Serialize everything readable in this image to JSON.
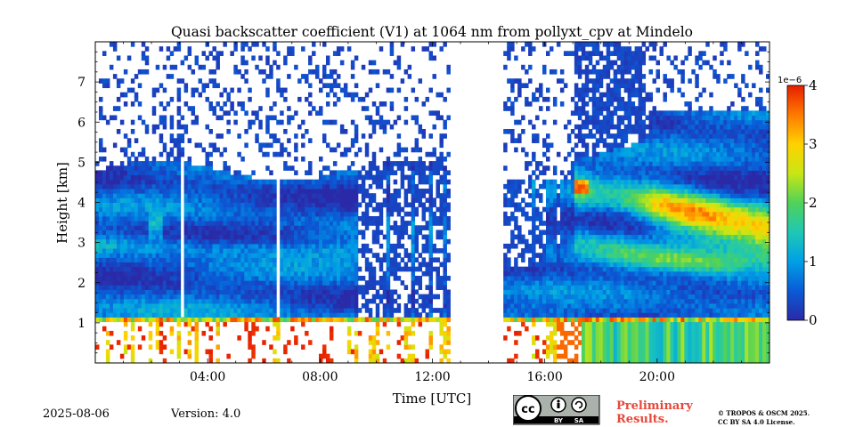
{
  "chart_data": {
    "type": "heatmap",
    "title": "Quasi backscatter coefficient (V1) at 1064 nm from pollyxt_cpv at Mindelo",
    "xlabel": "Time [UTC]",
    "ylabel": "Height [km]",
    "x_range_hours": [
      0,
      24
    ],
    "x_ticks": [
      {
        "value": 4,
        "label": "04:00"
      },
      {
        "value": 8,
        "label": "08:00"
      },
      {
        "value": 12,
        "label": "12:00"
      },
      {
        "value": 16,
        "label": "16:00"
      },
      {
        "value": 20,
        "label": "20:00"
      }
    ],
    "y_range_km": [
      0,
      8
    ],
    "y_ticks": [
      {
        "value": 1,
        "label": "1"
      },
      {
        "value": 2,
        "label": "2"
      },
      {
        "value": 3,
        "label": "3"
      },
      {
        "value": 4,
        "label": "4"
      },
      {
        "value": 5,
        "label": "5"
      },
      {
        "value": 6,
        "label": "6"
      },
      {
        "value": 7,
        "label": "7"
      }
    ],
    "colorbar": {
      "range": [
        0,
        4
      ],
      "exponent_label": "1e−6",
      "ticks": [
        {
          "value": 0,
          "label": "0"
        },
        {
          "value": 1,
          "label": "1"
        },
        {
          "value": 2,
          "label": "2"
        },
        {
          "value": 3,
          "label": "3"
        },
        {
          "value": 4,
          "label": "4"
        }
      ],
      "colormap": [
        "#2a2aa8",
        "#0a5ad6",
        "#00a0e6",
        "#1ec8b4",
        "#50d25a",
        "#c8e614",
        "#ffd200",
        "#ff7a00",
        "#e61e00"
      ]
    },
    "no_data_intervals_hours": [
      [
        12.6,
        14.5
      ]
    ],
    "layers": [
      {
        "name": "boundary layer top",
        "start_h": 0,
        "end_h": 24,
        "height_km": 1.0
      },
      {
        "name": "dust layer",
        "start_h": 0,
        "end_h": 24,
        "base_km": 1.3,
        "top_km": 4.8
      },
      {
        "name": "elevated dust maximum",
        "start_h": 17,
        "end_h": 24,
        "height_km_start": 4.4,
        "height_km_end": 3.3,
        "value_peak": 4.0
      }
    ]
  },
  "footer": {
    "date": "2025-08-06",
    "version": "Version: 4.0",
    "preliminary_line1": "Preliminary",
    "preliminary_line2": "Results.",
    "license_line1": "© TROPOS & OSCM 2025.",
    "license_line2": "CC BY SA 4.0 License.",
    "cc_by": "BY",
    "cc_sa": "SA"
  }
}
